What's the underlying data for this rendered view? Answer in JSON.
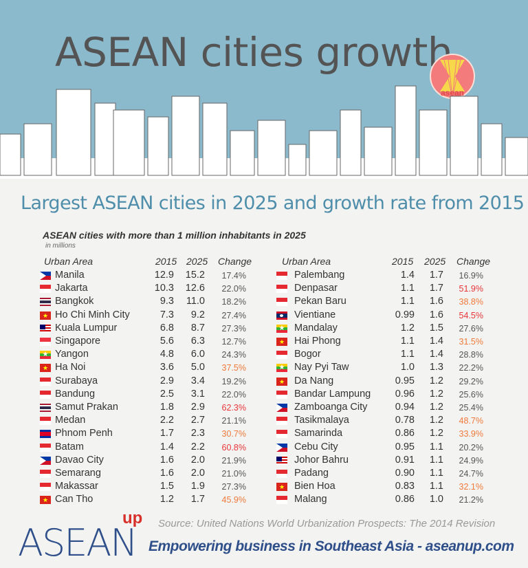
{
  "header": {
    "title": "ASEAN cities growth",
    "logo_text": "asean"
  },
  "subtitle": "Largest ASEAN cities in 2025 and growth rate from 2015",
  "colors": {
    "sky": "#8cbacd",
    "high_growth": "#e8363a",
    "medium_growth": "#f07a3c",
    "normal": "#555555"
  },
  "chart_data": {
    "type": "table",
    "title": "ASEAN cities with more than 1 million inhabitants in 2025",
    "unit": "in millions",
    "columns": [
      "Urban Area",
      "2015",
      "2025",
      "Change"
    ],
    "rows": [
      {
        "city": "Manila",
        "flag": "PH",
        "y2015": "12.9",
        "y2025": "15.2",
        "change": "17.4%"
      },
      {
        "city": "Jakarta",
        "flag": "ID",
        "y2015": "10.3",
        "y2025": "12.6",
        "change": "22.0%"
      },
      {
        "city": "Bangkok",
        "flag": "TH",
        "y2015": "9.3",
        "y2025": "11.0",
        "change": "18.2%"
      },
      {
        "city": "Ho Chi Minh City",
        "flag": "VN",
        "y2015": "7.3",
        "y2025": "9.2",
        "change": "27.4%"
      },
      {
        "city": "Kuala Lumpur",
        "flag": "MY",
        "y2015": "6.8",
        "y2025": "8.7",
        "change": "27.3%"
      },
      {
        "city": "Singapore",
        "flag": "SG",
        "y2015": "5.6",
        "y2025": "6.3",
        "change": "12.7%"
      },
      {
        "city": "Yangon",
        "flag": "MM",
        "y2015": "4.8",
        "y2025": "6.0",
        "change": "24.3%"
      },
      {
        "city": "Ha Noi",
        "flag": "VN",
        "y2015": "3.6",
        "y2025": "5.0",
        "change": "37.5%"
      },
      {
        "city": "Surabaya",
        "flag": "ID",
        "y2015": "2.9",
        "y2025": "3.4",
        "change": "19.2%"
      },
      {
        "city": "Bandung",
        "flag": "ID",
        "y2015": "2.5",
        "y2025": "3.1",
        "change": "22.0%"
      },
      {
        "city": "Samut Prakan",
        "flag": "TH",
        "y2015": "1.8",
        "y2025": "2.9",
        "change": "62.3%"
      },
      {
        "city": "Medan",
        "flag": "ID",
        "y2015": "2.2",
        "y2025": "2.7",
        "change": "21.1%"
      },
      {
        "city": "Phnom Penh",
        "flag": "KH",
        "y2015": "1.7",
        "y2025": "2.3",
        "change": "30.7%"
      },
      {
        "city": "Batam",
        "flag": "ID",
        "y2015": "1.4",
        "y2025": "2.2",
        "change": "60.8%"
      },
      {
        "city": "Davao City",
        "flag": "PH",
        "y2015": "1.6",
        "y2025": "2.0",
        "change": "21.9%"
      },
      {
        "city": "Semarang",
        "flag": "ID",
        "y2015": "1.6",
        "y2025": "2.0",
        "change": "21.0%"
      },
      {
        "city": "Makassar",
        "flag": "ID",
        "y2015": "1.5",
        "y2025": "1.9",
        "change": "27.3%"
      },
      {
        "city": "Can Tho",
        "flag": "VN",
        "y2015": "1.2",
        "y2025": "1.7",
        "change": "45.9%"
      },
      {
        "city": "Palembang",
        "flag": "ID",
        "y2015": "1.4",
        "y2025": "1.7",
        "change": "16.9%"
      },
      {
        "city": "Denpasar",
        "flag": "ID",
        "y2015": "1.1",
        "y2025": "1.7",
        "change": "51.9%"
      },
      {
        "city": "Pekan Baru",
        "flag": "ID",
        "y2015": "1.1",
        "y2025": "1.6",
        "change": "38.8%"
      },
      {
        "city": "Vientiane",
        "flag": "LA",
        "y2015": "0.99",
        "y2025": "1.6",
        "change": "54.5%"
      },
      {
        "city": "Mandalay",
        "flag": "MM",
        "y2015": "1.2",
        "y2025": "1.5",
        "change": "27.6%"
      },
      {
        "city": "Hai Phong",
        "flag": "VN",
        "y2015": "1.1",
        "y2025": "1.4",
        "change": "31.5%"
      },
      {
        "city": "Bogor",
        "flag": "ID",
        "y2015": "1.1",
        "y2025": "1.4",
        "change": "28.8%"
      },
      {
        "city": "Nay Pyi Taw",
        "flag": "MM",
        "y2015": "1.0",
        "y2025": "1.3",
        "change": "22.2%"
      },
      {
        "city": "Da Nang",
        "flag": "VN",
        "y2015": "0.95",
        "y2025": "1.2",
        "change": "29.2%"
      },
      {
        "city": "Bandar Lampung",
        "flag": "ID",
        "y2015": "0.96",
        "y2025": "1.2",
        "change": "25.6%"
      },
      {
        "city": "Zamboanga City",
        "flag": "PH",
        "y2015": "0.94",
        "y2025": "1.2",
        "change": "25.4%"
      },
      {
        "city": "Tasikmalaya",
        "flag": "ID",
        "y2015": "0.78",
        "y2025": "1.2",
        "change": "48.7%"
      },
      {
        "city": "Samarinda",
        "flag": "ID",
        "y2015": "0.86",
        "y2025": "1.2",
        "change": "33.9%"
      },
      {
        "city": "Cebu City",
        "flag": "PH",
        "y2015": "0.95",
        "y2025": "1.1",
        "change": "20.2%"
      },
      {
        "city": "Johor Bahru",
        "flag": "MY",
        "y2015": "0.91",
        "y2025": "1.1",
        "change": "24.9%"
      },
      {
        "city": "Padang",
        "flag": "ID",
        "y2015": "0.90",
        "y2025": "1.1",
        "change": "24.7%"
      },
      {
        "city": "Bien Hoa",
        "flag": "VN",
        "y2015": "0.83",
        "y2025": "1.1",
        "change": "32.1%"
      },
      {
        "city": "Malang",
        "flag": "ID",
        "y2015": "0.86",
        "y2025": "1.0",
        "change": "21.2%"
      }
    ]
  },
  "footer": {
    "source": "Source: United Nations World Urbanization Prospects: The 2014 Revision",
    "tagline": "Empowering business in Southeast Asia - aseanup.com",
    "brand": "ASEAN",
    "brand_sup": "up"
  }
}
